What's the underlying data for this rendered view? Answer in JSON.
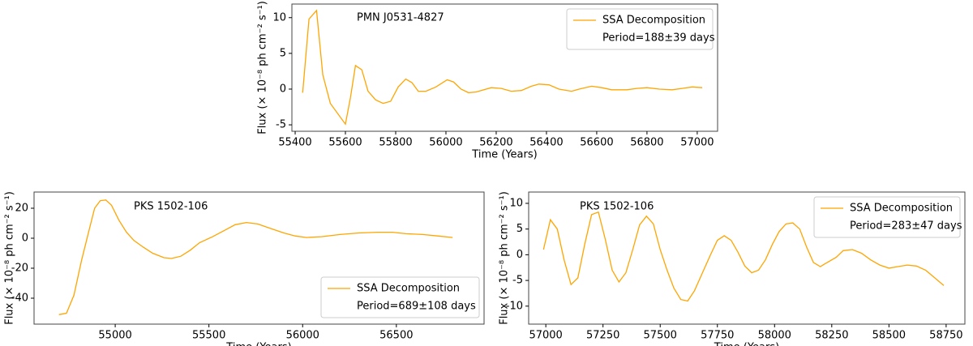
{
  "chart_data": [
    {
      "type": "line",
      "title": "PMN J0531-4827",
      "xlabel": "Time (Years)",
      "ylabel": "Flux (× 10⁻⁸ ph cm⁻² s⁻¹)",
      "x": [
        55430,
        55455,
        55485,
        55510,
        55540,
        55600,
        55620,
        55640,
        55665,
        55690,
        55720,
        55750,
        55780,
        55810,
        55840,
        55865,
        55890,
        55920,
        55960,
        56005,
        56030,
        56060,
        56090,
        56120,
        56180,
        56220,
        56260,
        56300,
        56340,
        56370,
        56410,
        56450,
        56500,
        56530,
        56580,
        56620,
        56660,
        56720,
        56760,
        56800,
        56850,
        56900,
        56940,
        56980,
        57020
      ],
      "series": [
        {
          "name": "SSA Decomposition",
          "color": "#ffa500",
          "values": [
            -0.5,
            9.8,
            11,
            2,
            -2,
            -4.9,
            -1.2,
            3.3,
            2.7,
            -0.3,
            -1.5,
            -2,
            -1.7,
            0.3,
            1.4,
            0.9,
            -0.3,
            -0.3,
            0.3,
            1.3,
            1,
            0,
            -0.5,
            -0.4,
            0.2,
            0.1,
            -0.3,
            -0.2,
            0.4,
            0.7,
            0.6,
            0,
            -0.3,
            0,
            0.4,
            0.2,
            -0.1,
            -0.1,
            0.1,
            0.2,
            0,
            -0.1,
            0.1,
            0.3,
            0.2
          ]
        }
      ],
      "legend_note": "Period=188±39 days",
      "legend": "upper right",
      "xlim": [
        55387,
        57081
      ],
      "xticks": [
        55400,
        55600,
        55800,
        56000,
        56200,
        56400,
        56600,
        56800,
        57000
      ],
      "ylim": [
        -5.9,
        11.9
      ],
      "yticks": [
        -5,
        0,
        5,
        10
      ]
    },
    {
      "type": "line",
      "title": "PKS 1502-106",
      "xlabel": "Time (Years)",
      "ylabel": "Flux (× 10⁻⁸ ph cm⁻² s⁻¹)",
      "x": [
        54700,
        54740,
        54780,
        54820,
        54860,
        54890,
        54920,
        54950,
        54980,
        55020,
        55060,
        55100,
        55150,
        55200,
        55260,
        55300,
        55350,
        55400,
        55450,
        55520,
        55580,
        55640,
        55700,
        55760,
        55830,
        55900,
        55960,
        56020,
        56100,
        56200,
        56300,
        56400,
        56480,
        56550,
        56640,
        56720,
        56800
      ],
      "series": [
        {
          "name": "SSA Decomposition",
          "color": "#ffa500",
          "values": [
            -51,
            -50,
            -38,
            -15,
            5,
            20,
            25,
            25.5,
            22,
            12,
            4,
            -1.5,
            -6,
            -10,
            -13,
            -13.5,
            -12,
            -8,
            -3,
            1,
            5,
            9,
            10.5,
            9.5,
            6.5,
            3.5,
            1.5,
            0.5,
            1,
            2.5,
            3.5,
            4,
            4,
            3,
            2.5,
            1.5,
            0.5
          ]
        }
      ],
      "legend_note": "Period=689±108 days",
      "legend": "lower right",
      "xlim": [
        54567,
        56968
      ],
      "xticks": [
        55000,
        55500,
        56000,
        56500
      ],
      "ylim": [
        -57.3,
        30.8
      ],
      "yticks": [
        -40,
        -20,
        0,
        20
      ]
    },
    {
      "type": "line",
      "title": "PKS 1502-106",
      "xlabel": "Time (Years)",
      "ylabel": "Flux (× 10⁻⁸ ph cm⁻² s⁻¹)",
      "x": [
        56990,
        57020,
        57050,
        57080,
        57110,
        57140,
        57170,
        57200,
        57230,
        57260,
        57290,
        57320,
        57350,
        57380,
        57410,
        57440,
        57470,
        57500,
        57530,
        57560,
        57590,
        57620,
        57650,
        57690,
        57720,
        57750,
        57780,
        57810,
        57840,
        57870,
        57900,
        57930,
        57960,
        57990,
        58020,
        58050,
        58080,
        58110,
        58140,
        58170,
        58200,
        58230,
        58270,
        58300,
        58340,
        58380,
        58420,
        58460,
        58500,
        58540,
        58580,
        58620,
        58660,
        58700,
        58740
      ],
      "series": [
        {
          "name": "SSA Decomposition",
          "color": "#ffa500",
          "values": [
            1,
            6.8,
            5,
            -1,
            -5.8,
            -4.5,
            2,
            7.8,
            8.3,
            3,
            -3,
            -5.3,
            -3.5,
            1,
            5.8,
            7.5,
            6,
            1,
            -3,
            -6.5,
            -8.7,
            -9,
            -7,
            -3,
            0,
            2.8,
            3.7,
            2.8,
            0.5,
            -2.2,
            -3.5,
            -3,
            -1,
            2,
            4.5,
            6,
            6.2,
            5,
            1.5,
            -1.5,
            -2.3,
            -1.5,
            -0.5,
            0.8,
            1,
            0.3,
            -1,
            -2,
            -2.6,
            -2.3,
            -2,
            -2.2,
            -3,
            -4.5,
            -6
          ]
        }
      ],
      "legend_note": "Period=283±47 days",
      "legend": "upper right",
      "xlim": [
        56925,
        58832
      ],
      "xticks": [
        57000,
        57250,
        57500,
        57750,
        58000,
        58250,
        58500,
        58750
      ],
      "ylim": [
        -13.5,
        12.2
      ],
      "yticks": [
        -10,
        -5,
        0,
        5,
        10
      ]
    }
  ]
}
